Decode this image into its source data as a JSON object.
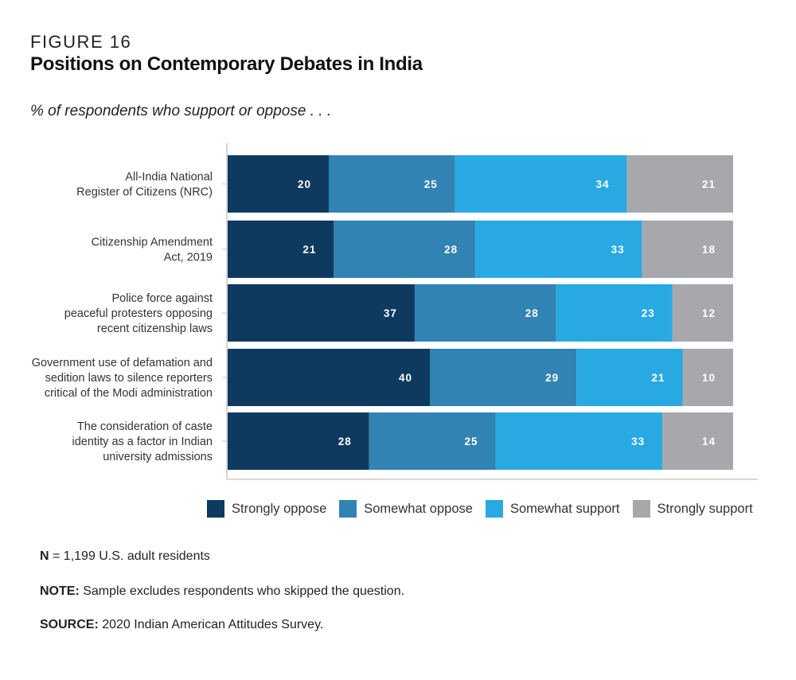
{
  "figure_label": "FIGURE 16",
  "chart_data": {
    "type": "bar",
    "orientation": "horizontal",
    "stacked": true,
    "title": "Positions on Contemporary Debates in India",
    "subtitle": "% of respondents who support or oppose . . .",
    "categories": [
      [
        "All-India National",
        "Register of Citizens (NRC)"
      ],
      [
        "Citizenship Amendment",
        "Act, 2019"
      ],
      [
        "Police force against",
        "peaceful protesters opposing",
        "recent citizenship laws"
      ],
      [
        "Government use of defamation and",
        "sedition laws to silence reporters",
        "critical of the Modi administration"
      ],
      [
        "The consideration of caste",
        "identity as a factor in Indian",
        "university admissions"
      ]
    ],
    "series": [
      {
        "name": "Strongly oppose",
        "color": "#0f3a60",
        "values": [
          20,
          21,
          37,
          40,
          28
        ]
      },
      {
        "name": "Somewhat oppose",
        "color": "#3183b3",
        "values": [
          25,
          28,
          28,
          29,
          25
        ]
      },
      {
        "name": "Somewhat support",
        "color": "#29a9e1",
        "values": [
          34,
          33,
          23,
          21,
          33
        ]
      },
      {
        "name": "Strongly support",
        "color": "#a7a8ab",
        "values": [
          21,
          18,
          12,
          10,
          14
        ]
      }
    ],
    "xlim": [
      0,
      100
    ],
    "grid": false,
    "legend_position": "bottom"
  },
  "notes": {
    "n_label": "N",
    "n_text": " = 1,199 U.S. adult residents",
    "note_label": "NOTE:",
    "note_text": " Sample excludes respondents who skipped the question.",
    "source_label": "SOURCE:",
    "source_text": " 2020 Indian American Attitudes Survey."
  }
}
